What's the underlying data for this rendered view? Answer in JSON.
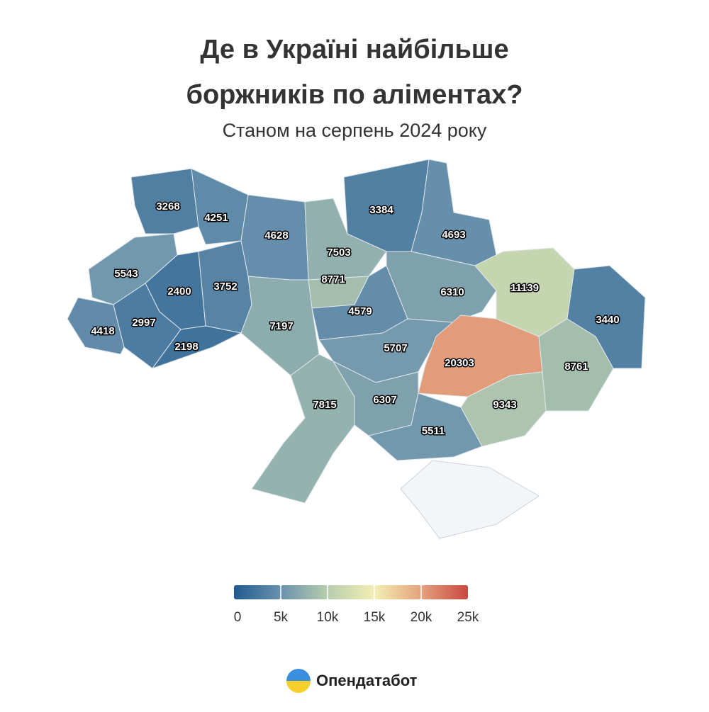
{
  "chart_data": {
    "type": "map",
    "title": "Де в Україні найбільше",
    "title_line2": "боржників по аліментах?",
    "subtitle": "Станом на серпень 2024 року",
    "values": [
      3268,
      4251,
      4628,
      7503,
      8771,
      3384,
      4693,
      5543,
      2400,
      3752,
      4418,
      2997,
      2198,
      7197,
      4579,
      6310,
      11139,
      3440,
      5707,
      20303,
      8761,
      9343,
      7815,
      6307,
      5511
    ],
    "legend_ticks": [
      0,
      {
        "value": 5000,
        "label": "5k"
      },
      {
        "value": 10000,
        "label": "10k"
      },
      {
        "value": 15000,
        "label": "15k"
      },
      {
        "value": 20000,
        "label": "20k"
      },
      {
        "value": 25000,
        "label": "25k"
      }
    ],
    "legend_colors": [
      "#1f5a8e",
      "#6a92ad",
      "#b7cdae",
      "#f3efb3",
      "#e4a27e",
      "#c9473f"
    ],
    "brand": "Опендатабот"
  }
}
